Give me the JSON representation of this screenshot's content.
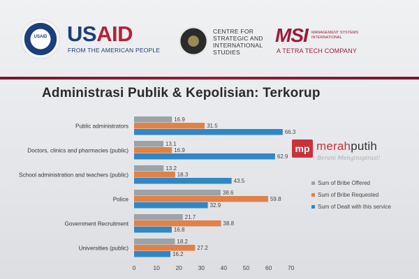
{
  "header": {
    "usaid_seal_text": "USAID",
    "usaid_word_blue": "US",
    "usaid_word_red": "AID",
    "usaid_tagline": "FROM THE AMERICAN PEOPLE",
    "csis_name": "CENTRE FOR STRATEGIC AND INTERNATIONAL STUDIES",
    "msi_mark": "MSI",
    "msi_fullname": "MANAGEMENT SYSTEMS INTERNATIONAL",
    "msi_tagline": "A TETRA TECH COMPANY"
  },
  "watermark": {
    "box": "mp",
    "word_red": "merah",
    "word_dark": "putih",
    "tagline": "Berani Menginspirasi!"
  },
  "colors": {
    "brand_red": "#9b1b3a",
    "offered": "#9aa3a7",
    "requested": "#e08148",
    "dealt": "#2f87c6"
  },
  "chart_data": {
    "type": "bar",
    "orientation": "horizontal",
    "title": "Administrasi Publik & Kepolisian: Terkorup",
    "categories": [
      "Public administrators",
      "Doctors, clinics and pharmacies (public)",
      "School administration and teachers (public)",
      "Police",
      "Government Recruitment",
      "Universities (public)"
    ],
    "series": [
      {
        "name": "Sum of Bribe Offered",
        "color": "#9aa3a7",
        "values": [
          16.9,
          13.1,
          13.2,
          38.6,
          21.7,
          18.2
        ]
      },
      {
        "name": "Sum of Bribe Requested",
        "color": "#e08148",
        "values": [
          31.5,
          16.9,
          18.3,
          59.8,
          38.8,
          27.2
        ]
      },
      {
        "name": "Sum of Dealt with this service",
        "color": "#2f87c6",
        "values": [
          66.3,
          62.9,
          43.5,
          32.9,
          16.8,
          16.2
        ]
      }
    ],
    "xlim": [
      0,
      70
    ],
    "xticks": [
      "0",
      "10",
      "20",
      "30",
      "40",
      "50",
      "60",
      "70"
    ],
    "legend_position": "right",
    "grid": false
  }
}
